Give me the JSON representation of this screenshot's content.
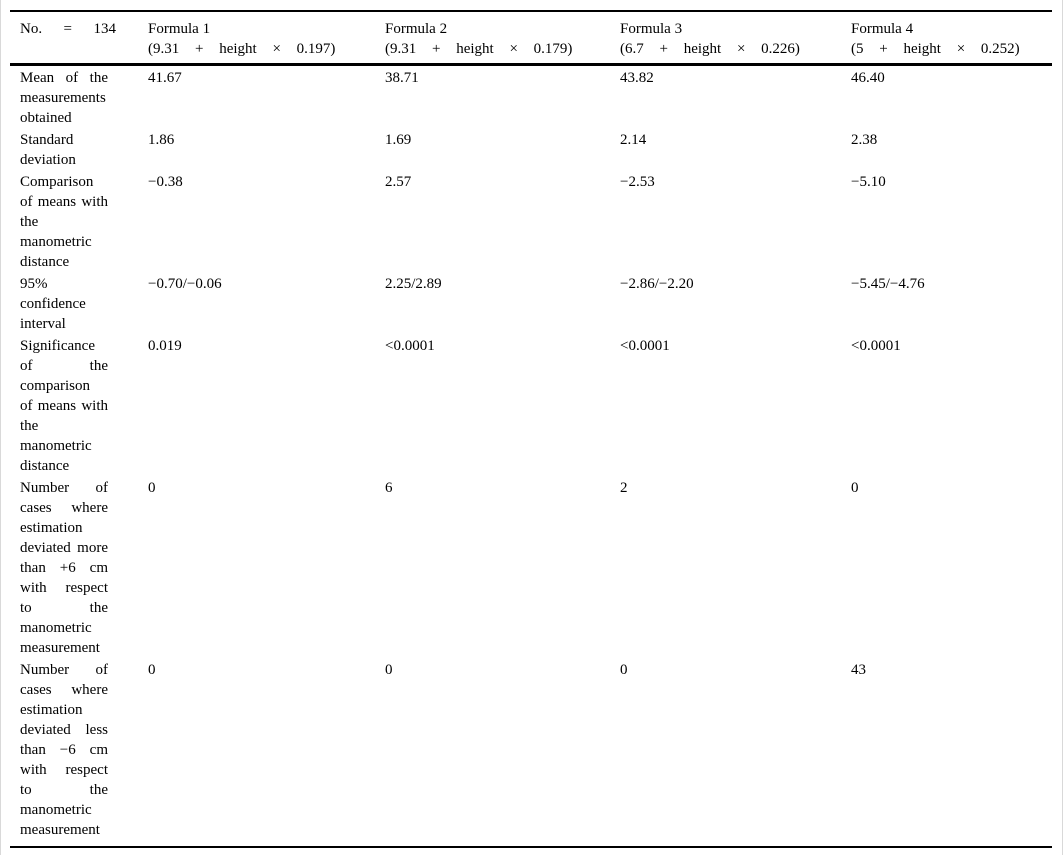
{
  "colors": {
    "rule": "#000000",
    "frame": "#d9d9d9",
    "text": "#000000"
  },
  "table": {
    "header": {
      "sample_size": "No. = 134",
      "columns": [
        {
          "name": "Formula 1",
          "formula": "(9.31 + height × 0.197)"
        },
        {
          "name": "Formula 2",
          "formula": "(9.31 + height × 0.179)"
        },
        {
          "name": "Formula 3",
          "formula": "(6.7 + height × 0.226)"
        },
        {
          "name": "Formula 4",
          "formula": "(5 + height × 0.252)"
        }
      ]
    },
    "rows": [
      {
        "label": "Mean of the measurements obtained",
        "label_lines": [
          "Mean of the",
          "measurements",
          "obtained"
        ],
        "values": [
          "41.67",
          "38.71",
          "43.82",
          "46.40"
        ]
      },
      {
        "label": "Standard deviation",
        "label_lines": [
          "Standard",
          "deviation"
        ],
        "values": [
          "1.86",
          "1.69",
          "2.14",
          "2.38"
        ]
      },
      {
        "label": "Comparison of means with the manometric distance",
        "label_lines": [
          "Comparison",
          "of means with",
          "the",
          "manometric",
          "distance"
        ],
        "values": [
          "−0.38",
          "2.57",
          "−2.53",
          "−5.10"
        ]
      },
      {
        "label": "95% confidence interval",
        "label_lines": [
          "95%",
          "confidence",
          "interval"
        ],
        "values": [
          "−0.70/−0.06",
          "2.25/2.89",
          "−2.86/−2.20",
          "−5.45/−4.76"
        ]
      },
      {
        "label": "Significance of the comparison of means with the manometric distance",
        "label_lines": [
          "Significance",
          "of the",
          "comparison",
          "of means with",
          "the",
          "manometric",
          "distance"
        ],
        "values": [
          "0.019",
          "<0.0001",
          "<0.0001",
          "<0.0001"
        ]
      },
      {
        "label": "Number of cases where estimation deviated more than +6 cm with respect to the manometric measurement",
        "label_lines": [
          "Number of",
          "cases where",
          "estimation",
          "deviated more",
          "than +6 cm",
          "with respect",
          "to the",
          "manometric",
          "measurement"
        ],
        "values": [
          "0",
          "6",
          "2",
          "0"
        ]
      },
      {
        "label": "Number of cases where estimation deviated less than −6 cm with respect to the manometric measurement",
        "label_lines": [
          "Number of",
          "cases where",
          "estimation",
          "deviated less",
          "than −6 cm",
          "with respect",
          "to the",
          "manometric",
          "measurement"
        ],
        "values": [
          "0",
          "0",
          "0",
          "43"
        ]
      }
    ]
  }
}
